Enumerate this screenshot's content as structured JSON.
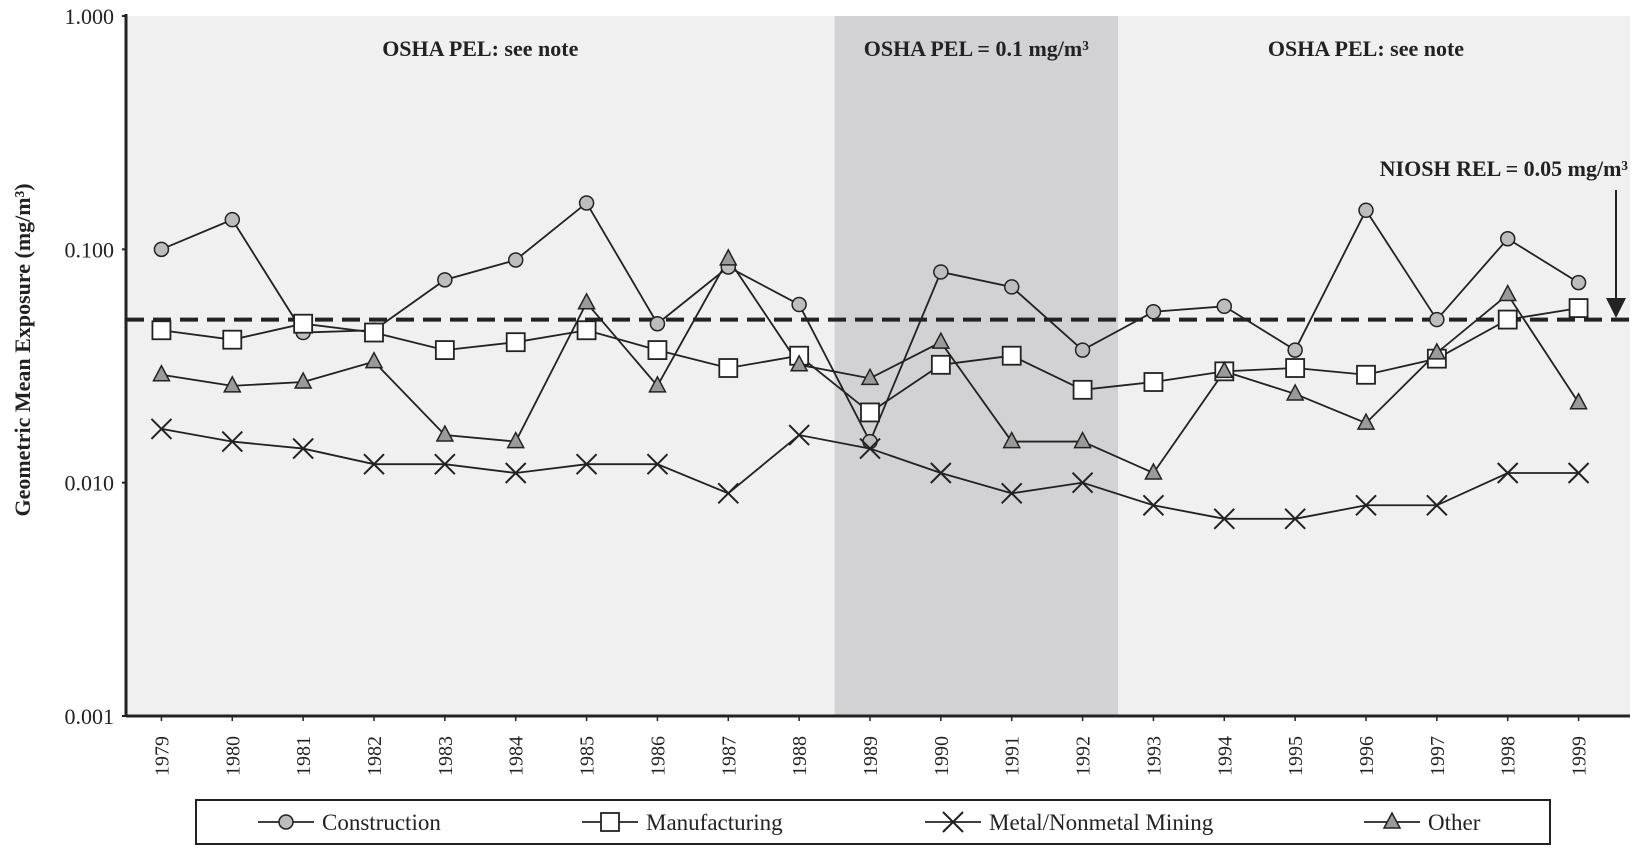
{
  "chart_data": {
    "type": "line",
    "log_scale_y": true,
    "y_label": "Geometric Mean Exposure (mg/m³)",
    "x": [
      1979,
      1980,
      1981,
      1982,
      1983,
      1984,
      1985,
      1986,
      1987,
      1988,
      1989,
      1990,
      1991,
      1992,
      1993,
      1994,
      1995,
      1996,
      1997,
      1998,
      1999
    ],
    "xlim": [
      1978.5,
      1999.5
    ],
    "xticks": [
      1979,
      1980,
      1981,
      1982,
      1983,
      1984,
      1985,
      1986,
      1987,
      1988,
      1989,
      1990,
      1991,
      1992,
      1993,
      1994,
      1995,
      1996,
      1997,
      1998,
      1999
    ],
    "ylim": [
      0.001,
      1
    ],
    "yticks": [
      {
        "value": 0.001,
        "label": "0.001"
      },
      {
        "value": 0.01,
        "label": "0.010"
      },
      {
        "value": 0.1,
        "label": "0.100"
      },
      {
        "value": 1,
        "label": "1.000"
      }
    ],
    "shaded_xrange": [
      1988.5,
      1992.5
    ],
    "reference_line": 0.05,
    "annotations": [
      "OSHA PEL:  see note",
      "OSHA PEL = 0.1 mg/m³",
      "OSHA PEL:  see note",
      "NIOSH REL = 0.05 mg/m³"
    ],
    "series": [
      {
        "name": "Construction",
        "color": "#222222",
        "marker": "circle",
        "values": [
          0.1,
          0.134,
          0.044,
          0.045,
          0.074,
          0.09,
          0.158,
          0.048,
          0.084,
          0.058,
          0.015,
          0.08,
          0.069,
          0.037,
          0.054,
          0.057,
          0.037,
          0.147,
          0.05,
          0.111,
          0.072
        ]
      },
      {
        "name": "Manufacturing",
        "color": "#222222",
        "marker": "square",
        "values": [
          0.045,
          0.041,
          0.048,
          0.044,
          0.037,
          0.04,
          0.045,
          0.037,
          0.031,
          0.035,
          0.02,
          0.032,
          0.035,
          0.025,
          0.027,
          0.03,
          0.031,
          0.029,
          0.034,
          0.05,
          0.056
        ]
      },
      {
        "name": "Metal/Nonmetal Mining",
        "color": "#222222",
        "marker": "x",
        "values": [
          0.017,
          0.015,
          0.014,
          0.012,
          0.012,
          0.011,
          0.012,
          0.012,
          0.009,
          0.016,
          0.014,
          0.011,
          0.009,
          0.01,
          0.008,
          0.007,
          0.007,
          0.008,
          0.008,
          0.011,
          0.011
        ]
      },
      {
        "name": "Other",
        "color": "#222222",
        "marker": "triangle",
        "values": [
          0.029,
          0.026,
          0.027,
          0.033,
          0.016,
          0.015,
          0.059,
          0.026,
          0.091,
          0.032,
          0.028,
          0.04,
          0.015,
          0.015,
          0.011,
          0.03,
          0.024,
          0.018,
          0.036,
          0.064,
          0.022
        ]
      }
    ]
  }
}
